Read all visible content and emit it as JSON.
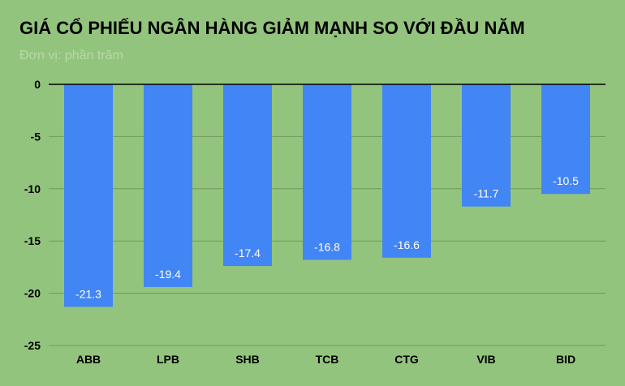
{
  "chart_data": {
    "type": "bar",
    "title": "GIÁ CỔ PHIẾU NGÂN HÀNG GIẢM MẠNH SO VỚI ĐẦU NĂM",
    "subtitle": "Đơn vị: phần trăm",
    "xlabel": "",
    "ylabel": "",
    "categories": [
      "ABB",
      "LPB",
      "SHB",
      "TCB",
      "CTG",
      "VIB",
      "BID"
    ],
    "values": [
      -21.3,
      -19.4,
      -17.4,
      -16.8,
      -16.6,
      -11.7,
      -10.5
    ],
    "data_labels": [
      "-21.3",
      "-19.4",
      "-17.4",
      "-16.8",
      "-16.6",
      "-11.7",
      "-10.5"
    ],
    "yticks": [
      0,
      -5,
      -10,
      -15,
      -20,
      -25
    ],
    "ylim": [
      -25,
      0
    ],
    "grid": true,
    "legend": "none",
    "colors": {
      "background": "#93c47d",
      "bar": "#4285f4",
      "gridline": "#6f9a5e",
      "zero_line": "#000000",
      "data_label": "#ffffff",
      "subtitle": "#b7d9a8"
    }
  }
}
